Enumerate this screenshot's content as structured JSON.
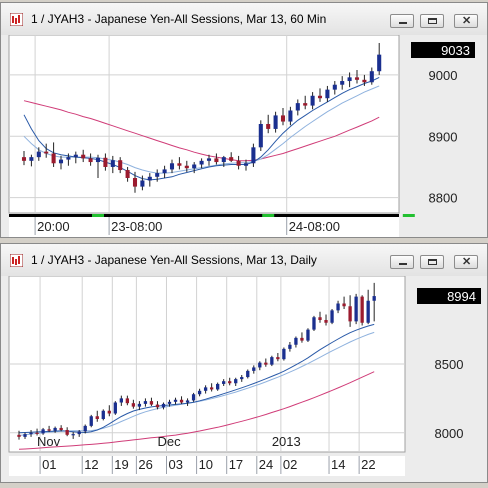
{
  "windows": [
    {
      "title": "1 / JYAH3 - Japanese Yen-All Sessions, Mar 13, 60 Min",
      "controls": {
        "minimize": "minimize-icon",
        "maximize": "maximize-icon",
        "close": "close-icon"
      }
    },
    {
      "title": "1 / JYAH3 - Japanese Yen-All Sessions, Mar 13, Daily",
      "controls": {
        "minimize": "minimize-icon",
        "maximize": "maximize-icon",
        "close": "close-icon"
      }
    }
  ],
  "chart_data": [
    {
      "type": "candlestick",
      "title": "1 / JYAH3 - Japanese Yen-All Sessions, Mar 13, 60 Min",
      "ylim": [
        8775,
        9065
      ],
      "y_ticks": [
        8800,
        8900,
        9000
      ],
      "last_price": "9033",
      "grid": true,
      "session_bar": true,
      "x_ticks": [
        {
          "label": "20:00",
          "i": 2
        },
        {
          "label": "23-08:00",
          "i": 12
        },
        {
          "label": "24-08:00",
          "i": 36
        }
      ],
      "session_marks": [
        10,
        33,
        52
      ],
      "colors": {
        "up": "#1a2f8f",
        "down": "#9b1b2e",
        "wick": "#222222",
        "ma_long": "#d03c78",
        "ma_short": "#2a5aa8",
        "ma_mid": "#8fb2de",
        "session": "#000000",
        "session_mark": "#22c030"
      },
      "candles": [
        [
          8866,
          8876,
          8853,
          8860
        ],
        [
          8860,
          8870,
          8851,
          8866
        ],
        [
          8866,
          8882,
          8860,
          8875
        ],
        [
          8875,
          8888,
          8865,
          8872
        ],
        [
          8872,
          8890,
          8850,
          8856
        ],
        [
          8856,
          8868,
          8846,
          8862
        ],
        [
          8862,
          8872,
          8852,
          8866
        ],
        [
          8866,
          8875,
          8856,
          8870
        ],
        [
          8870,
          8878,
          8858,
          8864
        ],
        [
          8864,
          8872,
          8852,
          8858
        ],
        [
          8858,
          8870,
          8832,
          8865
        ],
        [
          8865,
          8872,
          8844,
          8850
        ],
        [
          8850,
          8868,
          8840,
          8861
        ],
        [
          8861,
          8866,
          8840,
          8845
        ],
        [
          8845,
          8850,
          8826,
          8832
        ],
        [
          8832,
          8842,
          8808,
          8818
        ],
        [
          8818,
          8836,
          8812,
          8828
        ],
        [
          8828,
          8840,
          8818,
          8834
        ],
        [
          8834,
          8846,
          8826,
          8840
        ],
        [
          8840,
          8852,
          8832,
          8846
        ],
        [
          8846,
          8862,
          8840,
          8856
        ],
        [
          8856,
          8866,
          8846,
          8852
        ],
        [
          8852,
          8860,
          8842,
          8848
        ],
        [
          8848,
          8858,
          8840,
          8854
        ],
        [
          8854,
          8864,
          8848,
          8860
        ],
        [
          8860,
          8870,
          8852,
          8864
        ],
        [
          8864,
          8872,
          8854,
          8858
        ],
        [
          8858,
          8868,
          8850,
          8866
        ],
        [
          8866,
          8874,
          8858,
          8860
        ],
        [
          8860,
          8868,
          8846,
          8852
        ],
        [
          8852,
          8862,
          8844,
          8856
        ],
        [
          8856,
          8888,
          8850,
          8882
        ],
        [
          8882,
          8926,
          8876,
          8920
        ],
        [
          8920,
          8935,
          8905,
          8912
        ],
        [
          8912,
          8940,
          8906,
          8934
        ],
        [
          8934,
          8946,
          8918,
          8924
        ],
        [
          8924,
          8948,
          8918,
          8942
        ],
        [
          8942,
          8960,
          8934,
          8954
        ],
        [
          8954,
          8966,
          8944,
          8950
        ],
        [
          8950,
          8972,
          8944,
          8966
        ],
        [
          8966,
          8978,
          8956,
          8962
        ],
        [
          8962,
          8982,
          8956,
          8976
        ],
        [
          8976,
          8990,
          8968,
          8984
        ],
        [
          8984,
          8998,
          8976,
          8990
        ],
        [
          8990,
          9004,
          8980,
          8996
        ],
        [
          8996,
          9008,
          8986,
          8992
        ],
        [
          8992,
          9000,
          8982,
          8988
        ],
        [
          8988,
          9012,
          8984,
          9006
        ],
        [
          9006,
          9052,
          9000,
          9033
        ]
      ],
      "ma_long": [
        8958,
        8955,
        8952,
        8949,
        8946,
        8943,
        8939,
        8936,
        8932,
        8929,
        8925,
        8921,
        8917,
        8913,
        8909,
        8905,
        8901,
        8897,
        8893,
        8889,
        8885,
        8881,
        8878,
        8874,
        8871,
        8868,
        8866,
        8864,
        8862,
        8860,
        8860,
        8861,
        8863,
        8866,
        8869,
        8872,
        8876,
        8880,
        8884,
        8888,
        8892,
        8896,
        8900,
        8905,
        8910,
        8915,
        8920,
        8925,
        8931
      ],
      "ma_short": [
        8935,
        8912,
        8893,
        8880,
        8873,
        8870,
        8868,
        8866,
        8865,
        8864,
        8862,
        8858,
        8854,
        8849,
        8843,
        8836,
        8831,
        8829,
        8830,
        8832,
        8834,
        8838,
        8841,
        8844,
        8847,
        8850,
        8852,
        8853,
        8854,
        8854,
        8854,
        8858,
        8866,
        8878,
        8892,
        8905,
        8916,
        8926,
        8934,
        8942,
        8949,
        8956,
        8963,
        8970,
        8976,
        8981,
        8986,
        8990,
        8996
      ],
      "ma_mid": [
        8900,
        8888,
        8878,
        8872,
        8868,
        8866,
        8866,
        8866,
        8866,
        8866,
        8865,
        8863,
        8861,
        8858,
        8854,
        8849,
        8845,
        8842,
        8840,
        8840,
        8841,
        8843,
        8845,
        8847,
        8849,
        8851,
        8853,
        8855,
        8856,
        8857,
        8857,
        8859,
        8863,
        8870,
        8879,
        8888,
        8898,
        8907,
        8916,
        8924,
        8932,
        8940,
        8947,
        8954,
        8960,
        8966,
        8972,
        8977,
        8982
      ]
    },
    {
      "type": "candlestick",
      "title": "1 / JYAH3 - Japanese Yen-All Sessions, Mar 13, Daily",
      "ylim": [
        7860,
        9140
      ],
      "y_ticks": [
        8000,
        8500
      ],
      "last_price": "8994",
      "grid": true,
      "major_labels": [
        {
          "label": "Nov",
          "i": 3
        },
        {
          "label": "Dec",
          "i": 23
        },
        {
          "label": "2013",
          "i": 42
        }
      ],
      "x_ticks": [
        {
          "label": "01",
          "i": 4
        },
        {
          "label": "12",
          "i": 11
        },
        {
          "label": "19",
          "i": 16
        },
        {
          "label": "26",
          "i": 20
        },
        {
          "label": "03",
          "i": 25
        },
        {
          "label": "10",
          "i": 30
        },
        {
          "label": "17",
          "i": 35
        },
        {
          "label": "24",
          "i": 40
        },
        {
          "label": "02",
          "i": 44
        },
        {
          "label": "14",
          "i": 52
        },
        {
          "label": "22",
          "i": 57
        }
      ],
      "colors": {
        "up": "#1a2f8f",
        "down": "#9b1b2e",
        "wick": "#222222",
        "ma_long": "#d03c78",
        "ma_short": "#2a5aa8",
        "ma_mid": "#8fb2de"
      },
      "candles": [
        [
          7985,
          8015,
          7950,
          7970
        ],
        [
          7970,
          8000,
          7955,
          7990
        ],
        [
          7990,
          8020,
          7970,
          8000
        ],
        [
          8000,
          8030,
          7980,
          7995
        ],
        [
          7995,
          8035,
          7985,
          8025
        ],
        [
          8025,
          8050,
          8005,
          8015
        ],
        [
          8015,
          8045,
          8000,
          8035
        ],
        [
          8035,
          8055,
          8010,
          8020
        ],
        [
          8020,
          8040,
          7975,
          7985
        ],
        [
          7985,
          8005,
          7955,
          7990
        ],
        [
          7990,
          8020,
          7970,
          8010
        ],
        [
          8010,
          8060,
          7995,
          8050
        ],
        [
          8050,
          8130,
          8040,
          8120
        ],
        [
          8120,
          8160,
          8080,
          8100
        ],
        [
          8100,
          8170,
          8090,
          8160
        ],
        [
          8160,
          8200,
          8120,
          8140
        ],
        [
          8140,
          8230,
          8130,
          8220
        ],
        [
          8220,
          8270,
          8195,
          8250
        ],
        [
          8250,
          8270,
          8200,
          8215
        ],
        [
          8215,
          8240,
          8175,
          8190
        ],
        [
          8190,
          8230,
          8165,
          8210
        ],
        [
          8210,
          8250,
          8190,
          8230
        ],
        [
          8230,
          8255,
          8195,
          8205
        ],
        [
          8205,
          8230,
          8170,
          8185
        ],
        [
          8185,
          8220,
          8170,
          8210
        ],
        [
          8210,
          8240,
          8190,
          8225
        ],
        [
          8225,
          8255,
          8205,
          8240
        ],
        [
          8240,
          8265,
          8210,
          8220
        ],
        [
          8220,
          8250,
          8195,
          8235
        ],
        [
          8235,
          8290,
          8225,
          8280
        ],
        [
          8280,
          8320,
          8265,
          8305
        ],
        [
          8305,
          8345,
          8285,
          8330
        ],
        [
          8330,
          8360,
          8300,
          8315
        ],
        [
          8315,
          8365,
          8305,
          8355
        ],
        [
          8355,
          8390,
          8340,
          8375
        ],
        [
          8375,
          8400,
          8345,
          8360
        ],
        [
          8360,
          8400,
          8340,
          8390
        ],
        [
          8390,
          8420,
          8370,
          8405
        ],
        [
          8405,
          8460,
          8395,
          8450
        ],
        [
          8450,
          8490,
          8430,
          8475
        ],
        [
          8475,
          8520,
          8455,
          8510
        ],
        [
          8510,
          8540,
          8480,
          8495
        ],
        [
          8495,
          8560,
          8485,
          8550
        ],
        [
          8550,
          8580,
          8520,
          8535
        ],
        [
          8535,
          8620,
          8525,
          8610
        ],
        [
          8610,
          8660,
          8590,
          8640
        ],
        [
          8640,
          8700,
          8620,
          8690
        ],
        [
          8690,
          8730,
          8655,
          8670
        ],
        [
          8670,
          8760,
          8660,
          8750
        ],
        [
          8750,
          8850,
          8740,
          8840
        ],
        [
          8840,
          8880,
          8800,
          8820
        ],
        [
          8820,
          8860,
          8780,
          8800
        ],
        [
          8800,
          8900,
          8790,
          8890
        ],
        [
          8890,
          8960,
          8870,
          8940
        ],
        [
          8940,
          8990,
          8900,
          8920
        ],
        [
          8920,
          9000,
          8770,
          8810
        ],
        [
          8810,
          9010,
          8790,
          8990
        ],
        [
          8990,
          9000,
          8780,
          8800
        ],
        [
          8800,
          9040,
          8790,
          8960
        ],
        [
          8960,
          9090,
          8810,
          8994
        ]
      ],
      "ma_long": [
        7880,
        7882,
        7885,
        7888,
        7891,
        7894,
        7897,
        7900,
        7903,
        7906,
        7909,
        7912,
        7915,
        7919,
        7923,
        7928,
        7933,
        7938,
        7943,
        7948,
        7953,
        7958,
        7963,
        7968,
        7973,
        7978,
        7983,
        7990,
        7997,
        8005,
        8013,
        8022,
        8031,
        8040,
        8050,
        8061,
        8072,
        8083,
        8095,
        8107,
        8120,
        8133,
        8147,
        8161,
        8175,
        8190,
        8206,
        8222,
        8238,
        8255,
        8272,
        8290,
        8308,
        8326,
        8345,
        8364,
        8384,
        8404,
        8424,
        8444
      ],
      "ma_short": [
        8000,
        8002,
        8004,
        8006,
        8008,
        8010,
        8012,
        8014,
        8012,
        8008,
        8004,
        8002,
        8008,
        8020,
        8040,
        8065,
        8092,
        8118,
        8140,
        8158,
        8170,
        8180,
        8188,
        8194,
        8198,
        8202,
        8206,
        8210,
        8215,
        8222,
        8232,
        8244,
        8257,
        8270,
        8284,
        8298,
        8312,
        8327,
        8342,
        8358,
        8375,
        8392,
        8410,
        8428,
        8448,
        8470,
        8494,
        8518,
        8545,
        8575,
        8604,
        8630,
        8656,
        8682,
        8706,
        8728,
        8746,
        8762,
        8776,
        8788
      ],
      "ma_mid": [
        7980,
        7985,
        7990,
        7995,
        8000,
        8005,
        8008,
        8011,
        8013,
        8014,
        8014,
        8014,
        8016,
        8022,
        8032,
        8046,
        8063,
        8082,
        8101,
        8120,
        8137,
        8152,
        8165,
        8176,
        8185,
        8193,
        8200,
        8207,
        8214,
        8221,
        8229,
        8238,
        8248,
        8259,
        8271,
        8283,
        8296,
        8310,
        8324,
        8339,
        8354,
        8370,
        8387,
        8404,
        8422,
        8441,
        8461,
        8482,
        8503,
        8526,
        8549,
        8572,
        8595,
        8617,
        8639,
        8660,
        8680,
        8698,
        8715,
        8730
      ]
    }
  ]
}
